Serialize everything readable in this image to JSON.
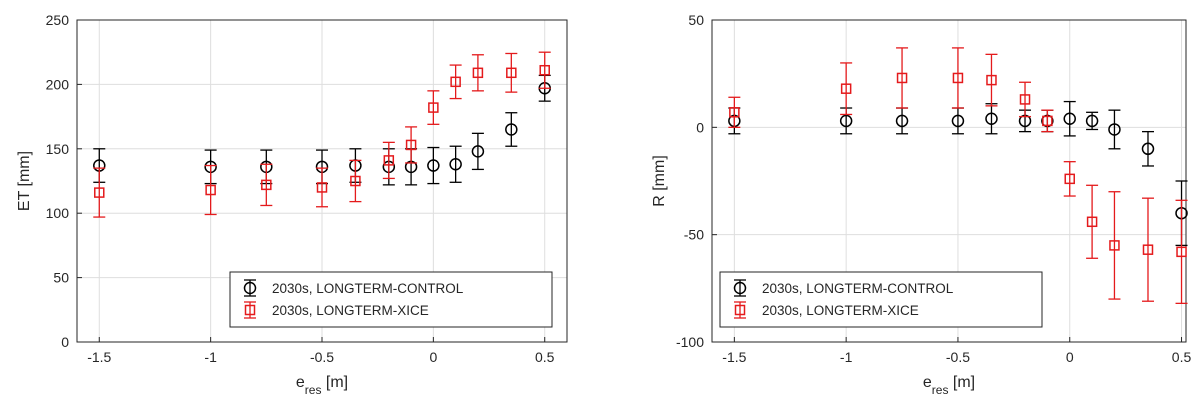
{
  "chart_data": [
    {
      "type": "scatter",
      "xlabel": "e",
      "xlabel_sub": "res",
      "xlabel_unit": "[m]",
      "ylabel": "ET [mm]",
      "xlim": [
        -1.6,
        0.6
      ],
      "ylim": [
        0,
        250
      ],
      "xticks": [
        -1.5,
        -1,
        -0.5,
        0,
        0.5
      ],
      "xtick_labels": [
        "-1.5",
        "-1",
        "-0.5",
        "0",
        "0.5"
      ],
      "yticks": [
        0,
        50,
        100,
        150,
        200,
        250
      ],
      "ytick_labels": [
        "0",
        "50",
        "100",
        "150",
        "200",
        "250"
      ],
      "grid": true,
      "legend_position": "bottom-right",
      "series": [
        {
          "name": "2030s, LONGTERM-CONTROL",
          "color": "#000000",
          "marker": "circle",
          "x": [
            -1.5,
            -1,
            -0.75,
            -0.5,
            -0.35,
            -0.2,
            -0.1,
            0,
            0.1,
            0.2,
            0.35,
            0.5
          ],
          "y": [
            137,
            136,
            136,
            136,
            137,
            136,
            136,
            137,
            138,
            148,
            165,
            197
          ],
          "err": [
            13,
            13,
            13,
            13,
            13,
            14,
            14,
            14,
            14,
            14,
            13,
            10
          ]
        },
        {
          "name": "2030s, LONGTERM-XICE",
          "color": "#e41a1c",
          "marker": "square",
          "x": [
            -1.5,
            -1,
            -0.75,
            -0.5,
            -0.35,
            -0.2,
            -0.1,
            0,
            0.1,
            0.2,
            0.35,
            0.5
          ],
          "y": [
            116,
            118,
            122,
            120,
            125,
            141,
            153,
            182,
            202,
            209,
            209,
            211
          ],
          "err": [
            19,
            19,
            16,
            15,
            16,
            14,
            14,
            13,
            13,
            14,
            15,
            14
          ]
        }
      ]
    },
    {
      "type": "scatter",
      "xlabel": "e",
      "xlabel_sub": "res",
      "xlabel_unit": "[m]",
      "ylabel": "R [mm]",
      "xlim": [
        -1.6,
        0.52
      ],
      "ylim": [
        -100,
        50
      ],
      "xticks": [
        -1.5,
        -1,
        -0.5,
        0,
        0.5
      ],
      "xtick_labels": [
        "-1.5",
        "-1",
        "-0.5",
        "0",
        "0.5"
      ],
      "yticks": [
        -100,
        -50,
        0,
        50
      ],
      "ytick_labels": [
        "-100",
        "-50",
        "0",
        "50"
      ],
      "grid": true,
      "legend_position": "bottom-left",
      "series": [
        {
          "name": "2030s, LONGTERM-CONTROL",
          "color": "#000000",
          "marker": "circle",
          "x": [
            -1.5,
            -1,
            -0.75,
            -0.5,
            -0.35,
            -0.2,
            -0.1,
            0,
            0.1,
            0.2,
            0.35,
            0.5
          ],
          "y": [
            3,
            3,
            3,
            3,
            4,
            3,
            3,
            4,
            3,
            -1,
            -10,
            -40
          ],
          "err": [
            6,
            6,
            6,
            6,
            7,
            5,
            5,
            8,
            4,
            9,
            8,
            15
          ]
        },
        {
          "name": "2030s, LONGTERM-XICE",
          "color": "#e41a1c",
          "marker": "square",
          "x": [
            -1.5,
            -1,
            -0.75,
            -0.5,
            -0.35,
            -0.2,
            -0.1,
            0,
            0.1,
            0.2,
            0.35,
            0.5
          ],
          "y": [
            7,
            18,
            23,
            23,
            22,
            13,
            3,
            -24,
            -44,
            -55,
            -57,
            -58
          ],
          "err": [
            7,
            12,
            14,
            14,
            12,
            8,
            5,
            8,
            17,
            25,
            24,
            24
          ]
        }
      ]
    }
  ]
}
